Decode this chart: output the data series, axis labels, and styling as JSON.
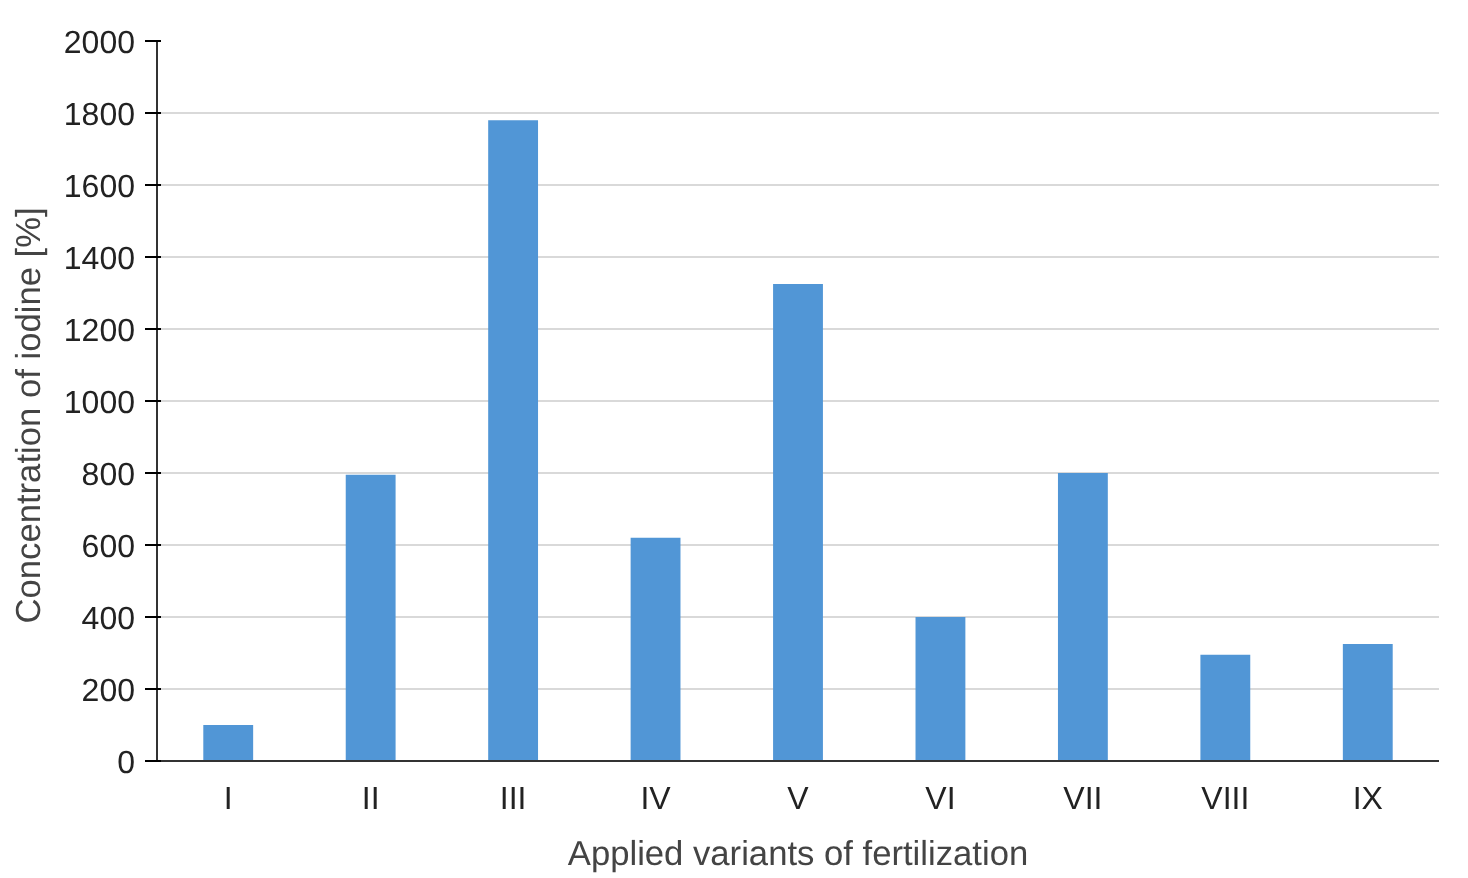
{
  "chart_data": {
    "type": "bar",
    "xlabel": "Applied variants of fertilization",
    "ylabel": "Concentration   of iodine  [%]",
    "categories": [
      "I",
      "II",
      "III",
      "IV",
      "V",
      "VI",
      "VII",
      "VIII",
      "IX"
    ],
    "values": [
      100,
      795,
      1780,
      620,
      1325,
      400,
      800,
      295,
      325
    ],
    "color": "#5196d6",
    "ylim": [
      0,
      2000
    ],
    "yticks": [
      0,
      200,
      400,
      600,
      800,
      1000,
      1200,
      1400,
      1600,
      1800,
      2000
    ],
    "grid": "y"
  }
}
